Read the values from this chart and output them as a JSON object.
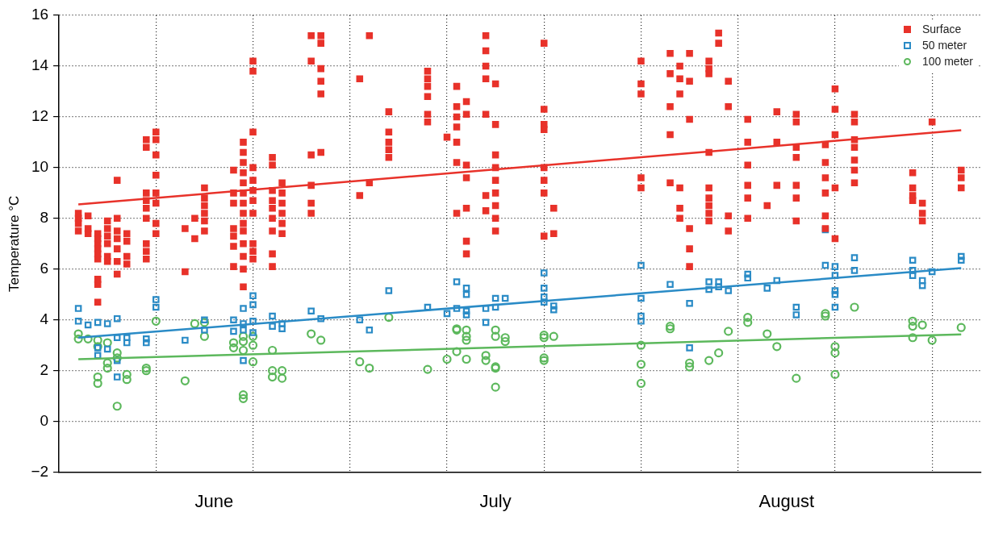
{
  "chart_data": {
    "type": "scatter",
    "ylabel": "Temperature °C",
    "ylim": [
      -2,
      16
    ],
    "yticks": [
      {
        "value": -2,
        "label": "−2"
      },
      0,
      2,
      4,
      6,
      8,
      10,
      12,
      14,
      16
    ],
    "xlim": [
      "--05-30",
      "--09-02"
    ],
    "xticks": [
      {
        "value": "--06-09",
        "label": null
      },
      {
        "value": "--06-15",
        "label": "June"
      },
      {
        "value": "--06-19",
        "label": null
      },
      {
        "value": "--06-29",
        "label": null
      },
      {
        "value": "--07-09",
        "label": null
      },
      {
        "value": "--07-14",
        "label": "July"
      },
      {
        "value": "--07-19",
        "label": null
      },
      {
        "value": "--07-29",
        "label": null
      },
      {
        "value": "--08-08",
        "label": null
      },
      {
        "value": "--08-13",
        "label": "August"
      },
      {
        "value": "--08-18",
        "label": null
      },
      {
        "value": "--08-28",
        "label": null
      }
    ],
    "grid": true,
    "legend": "top right",
    "line_style": "dotted",
    "series": [
      {
        "name": "Surface",
        "color": "#e8322a",
        "marker": "square",
        "x": [
          "--06-01",
          "--06-01",
          "--06-01",
          "--06-01",
          "--06-02",
          "--06-02",
          "--06-02",
          "--06-03",
          "--06-03",
          "--06-03",
          "--06-03",
          "--06-03",
          "--06-03",
          "--06-03",
          "--06-03",
          "--06-03",
          "--06-04",
          "--06-04",
          "--06-04",
          "--06-04",
          "--06-04",
          "--06-04",
          "--06-05",
          "--06-05",
          "--06-05",
          "--06-05",
          "--06-05",
          "--06-05",
          "--06-05",
          "--06-06",
          "--06-06",
          "--06-06",
          "--06-06",
          "--06-08",
          "--06-08",
          "--06-08",
          "--06-08",
          "--06-08",
          "--06-08",
          "--06-08",
          "--06-08",
          "--06-08",
          "--06-09",
          "--06-09",
          "--06-09",
          "--06-09",
          "--06-09",
          "--06-09",
          "--06-09",
          "--06-09",
          "--06-12",
          "--06-12",
          "--06-13",
          "--06-13",
          "--06-14",
          "--06-14",
          "--06-14",
          "--06-14",
          "--06-14",
          "--06-14",
          "--06-17",
          "--06-17",
          "--06-17",
          "--06-17",
          "--06-17",
          "--06-17",
          "--06-17",
          "--06-18",
          "--06-18",
          "--06-18",
          "--06-18",
          "--06-18",
          "--06-18",
          "--06-18",
          "--06-18",
          "--06-18",
          "--06-18",
          "--06-18",
          "--06-18",
          "--06-18",
          "--06-18",
          "--06-19",
          "--06-19",
          "--06-19",
          "--06-19",
          "--06-19",
          "--06-19",
          "--06-19",
          "--06-19",
          "--06-19",
          "--06-19",
          "--06-19",
          "--06-21",
          "--06-21",
          "--06-21",
          "--06-21",
          "--06-21",
          "--06-21",
          "--06-21",
          "--06-21",
          "--06-21",
          "--06-22",
          "--06-22",
          "--06-22",
          "--06-22",
          "--06-22",
          "--06-22",
          "--06-25",
          "--06-25",
          "--06-25",
          "--06-25",
          "--06-25",
          "--06-25",
          "--06-26",
          "--06-26",
          "--06-26",
          "--06-26",
          "--06-26",
          "--06-26",
          "--06-30",
          "--06-30",
          "--07-01",
          "--07-01",
          "--07-03",
          "--07-03",
          "--07-03",
          "--07-03",
          "--07-03",
          "--07-07",
          "--07-07",
          "--07-07",
          "--07-07",
          "--07-07",
          "--07-07",
          "--07-09",
          "--07-10",
          "--07-10",
          "--07-10",
          "--07-10",
          "--07-10",
          "--07-10",
          "--07-10",
          "--07-11",
          "--07-11",
          "--07-11",
          "--07-11",
          "--07-11",
          "--07-11",
          "--07-11",
          "--07-13",
          "--07-13",
          "--07-13",
          "--07-13",
          "--07-13",
          "--07-13",
          "--07-13",
          "--07-14",
          "--07-14",
          "--07-14",
          "--07-14",
          "--07-14",
          "--07-14",
          "--07-14",
          "--07-14",
          "--07-14",
          "--07-19",
          "--07-19",
          "--07-19",
          "--07-19",
          "--07-19",
          "--07-19",
          "--07-19",
          "--07-19",
          "--07-20",
          "--07-20",
          "--07-29",
          "--07-29",
          "--07-29",
          "--07-29",
          "--07-29",
          "--08-01",
          "--08-01",
          "--08-01",
          "--08-01",
          "--08-01",
          "--08-02",
          "--08-02",
          "--08-02",
          "--08-02",
          "--08-02",
          "--08-02",
          "--08-03",
          "--08-03",
          "--08-03",
          "--08-03",
          "--08-03",
          "--08-03",
          "--08-05",
          "--08-05",
          "--08-05",
          "--08-05",
          "--08-05",
          "--08-05",
          "--08-05",
          "--08-05",
          "--08-05",
          "--08-06",
          "--08-06",
          "--08-07",
          "--08-07",
          "--08-07",
          "--08-07",
          "--08-09",
          "--08-09",
          "--08-09",
          "--08-09",
          "--08-09",
          "--08-09",
          "--08-11",
          "--08-12",
          "--08-12",
          "--08-12",
          "--08-14",
          "--08-14",
          "--08-14",
          "--08-14",
          "--08-14",
          "--08-14",
          "--08-14",
          "--08-17",
          "--08-17",
          "--08-17",
          "--08-17",
          "--08-17",
          "--08-17",
          "--08-18",
          "--08-18",
          "--08-18",
          "--08-18",
          "--08-18",
          "--08-20",
          "--08-20",
          "--08-20",
          "--08-20",
          "--08-20",
          "--08-20",
          "--08-20",
          "--08-26",
          "--08-26",
          "--08-26",
          "--08-26",
          "--08-27",
          "--08-27",
          "--08-27",
          "--08-28",
          "--08-31",
          "--08-31",
          "--08-31"
        ],
        "values": [
          8.2,
          8.0,
          7.8,
          7.5,
          8.1,
          7.6,
          7.4,
          7.4,
          7.2,
          7.0,
          6.8,
          6.6,
          6.4,
          5.6,
          5.4,
          4.7,
          7.9,
          7.6,
          7.3,
          7.0,
          6.5,
          6.3,
          9.5,
          8.0,
          7.5,
          7.2,
          6.8,
          6.3,
          5.8,
          7.4,
          7.1,
          6.5,
          6.2,
          11.1,
          10.8,
          9.0,
          8.7,
          8.4,
          8.0,
          7.0,
          6.7,
          6.4,
          11.4,
          11.1,
          10.5,
          9.7,
          9.0,
          8.6,
          7.8,
          7.4,
          7.6,
          5.9,
          8.0,
          7.2,
          9.2,
          8.8,
          8.5,
          8.2,
          7.9,
          7.5,
          9.9,
          9.0,
          8.6,
          7.6,
          7.3,
          6.9,
          6.1,
          11.0,
          10.6,
          10.2,
          9.8,
          9.4,
          9.0,
          8.6,
          8.2,
          7.8,
          7.5,
          7.0,
          6.5,
          6.0,
          5.3,
          14.2,
          13.8,
          11.4,
          10.0,
          9.5,
          9.1,
          8.7,
          8.2,
          7.0,
          6.7,
          6.4,
          10.4,
          10.1,
          9.1,
          8.7,
          8.4,
          8.0,
          7.5,
          6.6,
          6.1,
          9.4,
          9.0,
          8.6,
          8.2,
          7.8,
          7.4,
          15.2,
          14.2,
          10.5,
          9.3,
          8.6,
          8.2,
          15.2,
          14.9,
          13.9,
          13.4,
          12.9,
          10.6,
          13.5,
          8.9,
          15.2,
          9.4,
          12.2,
          11.4,
          11.0,
          10.7,
          10.4,
          13.8,
          13.5,
          13.2,
          12.8,
          12.1,
          11.8,
          11.2,
          13.2,
          12.4,
          12.0,
          11.6,
          11.0,
          10.2,
          8.2,
          12.6,
          12.1,
          10.1,
          9.6,
          8.4,
          7.1,
          6.6,
          15.2,
          14.6,
          14.0,
          13.5,
          12.1,
          8.9,
          8.3,
          13.3,
          11.7,
          10.5,
          10.0,
          9.5,
          9.0,
          8.5,
          8.0,
          7.5,
          14.9,
          12.3,
          11.7,
          11.5,
          10.0,
          9.5,
          9.0,
          7.3,
          8.4,
          7.4,
          14.2,
          13.3,
          12.9,
          9.6,
          9.2,
          14.5,
          13.7,
          12.4,
          11.3,
          9.4,
          14.0,
          13.5,
          12.9,
          9.2,
          8.4,
          8.0,
          14.5,
          13.4,
          11.9,
          7.6,
          6.8,
          6.1,
          14.2,
          13.9,
          13.7,
          10.6,
          9.2,
          8.8,
          8.5,
          8.2,
          7.9,
          15.3,
          14.9,
          13.4,
          12.4,
          8.1,
          7.5,
          11.9,
          11.0,
          10.1,
          9.3,
          8.8,
          8.0,
          8.5,
          12.2,
          11.0,
          9.3,
          12.1,
          11.8,
          10.8,
          10.4,
          9.3,
          8.8,
          7.9,
          10.9,
          10.2,
          9.6,
          9.0,
          8.1,
          7.6,
          13.1,
          12.3,
          11.3,
          9.2,
          7.2,
          12.1,
          11.8,
          11.1,
          10.8,
          10.3,
          9.9,
          9.4,
          9.8,
          9.2,
          8.9,
          8.7,
          8.6,
          8.2,
          7.9,
          11.8,
          9.9,
          9.6,
          9.2
        ]
      },
      {
        "name": "50 meter",
        "color": "#2a8bc6",
        "marker": "square",
        "x": [
          "--06-01",
          "--06-01",
          "--06-02",
          "--06-03",
          "--06-03",
          "--06-03",
          "--06-04",
          "--06-04",
          "--06-05",
          "--06-05",
          "--06-05",
          "--06-05",
          "--06-06",
          "--06-06",
          "--06-08",
          "--06-08",
          "--06-09",
          "--06-09",
          "--06-12",
          "--06-14",
          "--06-14",
          "--06-17",
          "--06-17",
          "--06-18",
          "--06-18",
          "--06-18",
          "--06-18",
          "--06-19",
          "--06-19",
          "--06-19",
          "--06-19",
          "--06-21",
          "--06-21",
          "--06-22",
          "--06-22",
          "--06-25",
          "--06-26",
          "--06-30",
          "--07-01",
          "--07-03",
          "--07-07",
          "--07-09",
          "--07-10",
          "--07-10",
          "--07-11",
          "--07-11",
          "--07-11",
          "--07-11",
          "--07-13",
          "--07-13",
          "--07-14",
          "--07-14",
          "--07-15",
          "--07-19",
          "--07-19",
          "--07-19",
          "--07-19",
          "--07-20",
          "--07-20",
          "--07-29",
          "--07-29",
          "--07-29",
          "--07-29",
          "--08-01",
          "--08-03",
          "--08-03",
          "--08-05",
          "--08-05",
          "--08-06",
          "--08-06",
          "--08-07",
          "--08-09",
          "--08-09",
          "--08-11",
          "--08-12",
          "--08-14",
          "--08-14",
          "--08-17",
          "--08-17",
          "--08-18",
          "--08-18",
          "--08-18",
          "--08-18",
          "--08-18",
          "--08-20",
          "--08-20",
          "--08-26",
          "--08-26",
          "--08-26",
          "--08-27",
          "--08-27",
          "--08-28",
          "--08-31",
          "--08-31"
        ],
        "values": [
          4.45,
          3.95,
          3.8,
          3.9,
          2.9,
          2.6,
          3.85,
          2.85,
          4.05,
          3.3,
          2.4,
          1.75,
          3.3,
          3.1,
          3.25,
          3.1,
          4.8,
          4.5,
          3.2,
          4.0,
          3.6,
          4.0,
          3.55,
          4.45,
          3.85,
          3.6,
          2.4,
          4.95,
          4.6,
          3.95,
          3.5,
          4.15,
          3.75,
          3.85,
          3.65,
          4.35,
          4.05,
          4.0,
          3.6,
          5.15,
          4.5,
          4.25,
          5.5,
          4.45,
          5.25,
          5.0,
          4.35,
          4.2,
          4.45,
          3.9,
          4.85,
          4.5,
          4.85,
          5.85,
          5.25,
          4.9,
          4.7,
          4.55,
          4.4,
          6.15,
          4.85,
          4.15,
          3.95,
          5.4,
          4.65,
          2.9,
          5.5,
          5.2,
          5.5,
          5.3,
          5.15,
          5.8,
          5.65,
          5.25,
          5.55,
          4.5,
          4.2,
          7.55,
          6.15,
          6.1,
          5.75,
          5.15,
          5.0,
          4.5,
          6.45,
          5.95,
          6.35,
          5.95,
          5.75,
          5.55,
          5.35,
          5.9,
          6.5,
          6.35
        ]
      },
      {
        "name": "100 meter",
        "color": "#5cb85c",
        "marker": "circle",
        "x": [
          "--06-01",
          "--06-01",
          "--06-02",
          "--06-03",
          "--06-03",
          "--06-03",
          "--06-03",
          "--06-04",
          "--06-04",
          "--06-04",
          "--06-05",
          "--06-05",
          "--06-05",
          "--06-06",
          "--06-06",
          "--06-08",
          "--06-08",
          "--06-09",
          "--06-12",
          "--06-13",
          "--06-14",
          "--06-14",
          "--06-17",
          "--06-17",
          "--06-18",
          "--06-18",
          "--06-18",
          "--06-18",
          "--06-18",
          "--06-19",
          "--06-19",
          "--06-19",
          "--06-21",
          "--06-21",
          "--06-21",
          "--06-22",
          "--06-22",
          "--06-25",
          "--06-26",
          "--06-30",
          "--07-01",
          "--07-03",
          "--07-07",
          "--07-09",
          "--07-10",
          "--07-10",
          "--07-10",
          "--07-11",
          "--07-11",
          "--07-11",
          "--07-11",
          "--07-13",
          "--07-13",
          "--07-14",
          "--07-14",
          "--07-14",
          "--07-14",
          "--07-14",
          "--07-15",
          "--07-15",
          "--07-19",
          "--07-19",
          "--07-19",
          "--07-19",
          "--07-20",
          "--07-29",
          "--07-29",
          "--07-29",
          "--08-01",
          "--08-01",
          "--08-03",
          "--08-03",
          "--08-05",
          "--08-06",
          "--08-07",
          "--08-09",
          "--08-09",
          "--08-11",
          "--08-12",
          "--08-14",
          "--08-17",
          "--08-17",
          "--08-18",
          "--08-18",
          "--08-18",
          "--08-20",
          "--08-26",
          "--08-26",
          "--08-26",
          "--08-27",
          "--08-28",
          "--08-31"
        ],
        "values": [
          3.45,
          3.25,
          3.25,
          3.2,
          2.95,
          1.75,
          1.5,
          3.1,
          2.3,
          2.1,
          2.7,
          2.5,
          0.6,
          1.85,
          1.65,
          2.1,
          2.0,
          3.95,
          1.6,
          3.85,
          3.9,
          3.35,
          3.1,
          2.9,
          3.35,
          3.15,
          2.8,
          1.05,
          0.9,
          3.35,
          3.0,
          2.35,
          2.8,
          2.0,
          1.75,
          2.0,
          1.7,
          3.45,
          3.2,
          2.35,
          2.1,
          4.1,
          2.05,
          2.45,
          3.65,
          3.6,
          2.75,
          3.6,
          3.35,
          3.2,
          2.45,
          2.6,
          2.4,
          3.6,
          3.35,
          2.15,
          2.1,
          1.35,
          3.3,
          3.15,
          3.4,
          3.3,
          2.5,
          2.4,
          3.35,
          3.0,
          2.25,
          1.5,
          3.75,
          3.65,
          2.3,
          2.15,
          2.4,
          2.7,
          3.55,
          4.1,
          3.9,
          3.45,
          2.95,
          1.7,
          4.25,
          4.15,
          2.95,
          2.7,
          1.85,
          4.5,
          3.95,
          3.75,
          3.3,
          3.8,
          3.2,
          3.7
        ]
      },
      {
        "type": "line",
        "color": "#e8322a",
        "marker": "none",
        "line_style": "solid",
        "x": [
          "--06-01",
          "--08-31"
        ],
        "values": [
          8.55,
          11.47
        ]
      },
      {
        "type": "line",
        "color": "#2a8bc6",
        "marker": "none",
        "line_style": "solid",
        "x": [
          "--06-01",
          "--08-31"
        ],
        "values": [
          3.3,
          6.04
        ]
      },
      {
        "type": "line",
        "color": "#5cb85c",
        "marker": "none",
        "line_style": "solid",
        "x": [
          "--06-01",
          "--08-31"
        ],
        "values": [
          2.45,
          3.43
        ]
      }
    ]
  }
}
